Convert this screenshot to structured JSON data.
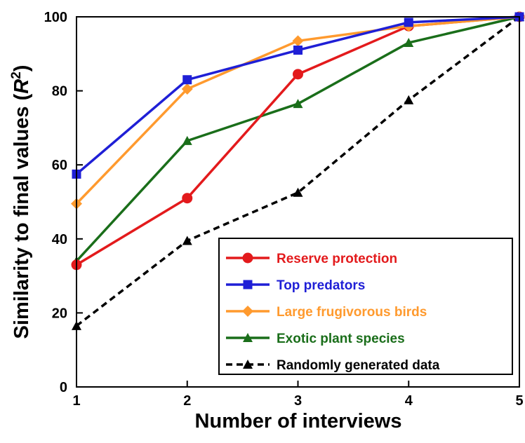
{
  "chart_data": {
    "type": "line",
    "xlabel": "Number of interviews",
    "ylabel_main": "Similarity to final values (",
    "ylabel_var": "R",
    "ylabel_sup": "2",
    "ylabel_end": ")",
    "xlim": [
      1,
      5
    ],
    "ylim": [
      0,
      100
    ],
    "x_ticks": [
      "1",
      "2",
      "3",
      "4",
      "5"
    ],
    "y_ticks": [
      "0",
      "20",
      "40",
      "60",
      "80",
      "100"
    ],
    "grid": false,
    "legend_position": "bottom-right",
    "x": [
      1,
      2,
      3,
      4,
      5
    ],
    "series": [
      {
        "name": "Reserve protection",
        "color": "#e31a1c",
        "marker": "circle",
        "dash": false,
        "values": [
          33,
          51,
          84.5,
          97.5,
          100
        ]
      },
      {
        "name": "Top predators",
        "color": "#1f1fd6",
        "marker": "square",
        "dash": false,
        "values": [
          57.5,
          83,
          91,
          98.5,
          100
        ]
      },
      {
        "name": "Large frugivorous birds",
        "color": "#ff9a2e",
        "marker": "diamond",
        "dash": false,
        "values": [
          49.5,
          80.5,
          93.5,
          97.5,
          100
        ]
      },
      {
        "name": "Exotic plant species",
        "color": "#1a6e1a",
        "marker": "triangle",
        "dash": false,
        "values": [
          34,
          66.5,
          76.5,
          93,
          100
        ]
      },
      {
        "name": "Randomly generated data",
        "color": "#000000",
        "marker": "triangle",
        "dash": true,
        "values": [
          16.5,
          39.5,
          52.5,
          77.5,
          100
        ]
      }
    ]
  }
}
